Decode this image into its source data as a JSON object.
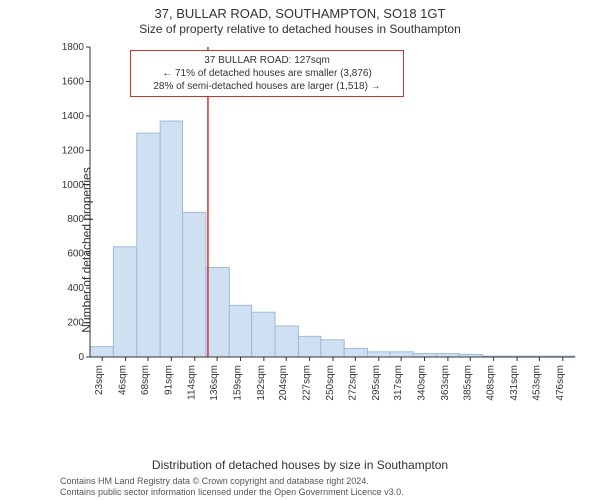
{
  "title_line1": "37, BULLAR ROAD, SOUTHAMPTON, SO18 1GT",
  "title_line2": "Size of property relative to detached houses in Southampton",
  "y_axis_label": "Number of detached properties",
  "x_axis_label": "Distribution of detached houses by size in Southampton",
  "chart": {
    "type": "histogram",
    "background_color": "#ffffff",
    "bar_fill": "#cfe0f3",
    "bar_stroke": "#9fbada",
    "bar_stroke_width": 1,
    "axis_color": "#333333",
    "tick_color": "#333333",
    "tick_font_size": 10,
    "xlim": [
      11,
      488
    ],
    "ylim": [
      0,
      1800
    ],
    "ytick_step": 200,
    "y_ticks": [
      0,
      200,
      400,
      600,
      800,
      1000,
      1200,
      1400,
      1600,
      1800
    ],
    "x_ticks": [
      23,
      46,
      68,
      91,
      114,
      136,
      159,
      182,
      204,
      227,
      250,
      272,
      295,
      317,
      340,
      363,
      385,
      408,
      431,
      453,
      476
    ],
    "x_tick_suffix": "sqm",
    "bars": [
      {
        "x_start": 11,
        "x_end": 34,
        "value": 60
      },
      {
        "x_start": 34,
        "x_end": 57,
        "value": 640
      },
      {
        "x_start": 57,
        "x_end": 80,
        "value": 1300
      },
      {
        "x_start": 80,
        "x_end": 102,
        "value": 1370
      },
      {
        "x_start": 102,
        "x_end": 125,
        "value": 840
      },
      {
        "x_start": 125,
        "x_end": 148,
        "value": 520
      },
      {
        "x_start": 148,
        "x_end": 170,
        "value": 300
      },
      {
        "x_start": 170,
        "x_end": 193,
        "value": 260
      },
      {
        "x_start": 193,
        "x_end": 216,
        "value": 180
      },
      {
        "x_start": 216,
        "x_end": 238,
        "value": 120
      },
      {
        "x_start": 238,
        "x_end": 261,
        "value": 100
      },
      {
        "x_start": 261,
        "x_end": 284,
        "value": 50
      },
      {
        "x_start": 284,
        "x_end": 306,
        "value": 30
      },
      {
        "x_start": 306,
        "x_end": 329,
        "value": 30
      },
      {
        "x_start": 329,
        "x_end": 352,
        "value": 20
      },
      {
        "x_start": 352,
        "x_end": 374,
        "value": 20
      },
      {
        "x_start": 374,
        "x_end": 397,
        "value": 15
      },
      {
        "x_start": 397,
        "x_end": 420,
        "value": 5
      },
      {
        "x_start": 420,
        "x_end": 442,
        "value": 5
      },
      {
        "x_start": 442,
        "x_end": 465,
        "value": 5
      },
      {
        "x_start": 465,
        "x_end": 488,
        "value": 5
      }
    ],
    "reference_line": {
      "x": 127,
      "color": "#cc3333",
      "stroke_width": 1.5
    }
  },
  "annotation": {
    "border_color": "#cc3333",
    "lines": [
      "37 BULLAR ROAD: 127sqm",
      "← 71% of detached houses are smaller (3,876)",
      "28% of semi-detached houses are larger (1,518) →"
    ]
  },
  "attribution": {
    "line1": "Contains HM Land Registry data © Crown copyright and database right 2024.",
    "line2": "Contains public sector information licensed under the Open Government Licence v3.0."
  }
}
